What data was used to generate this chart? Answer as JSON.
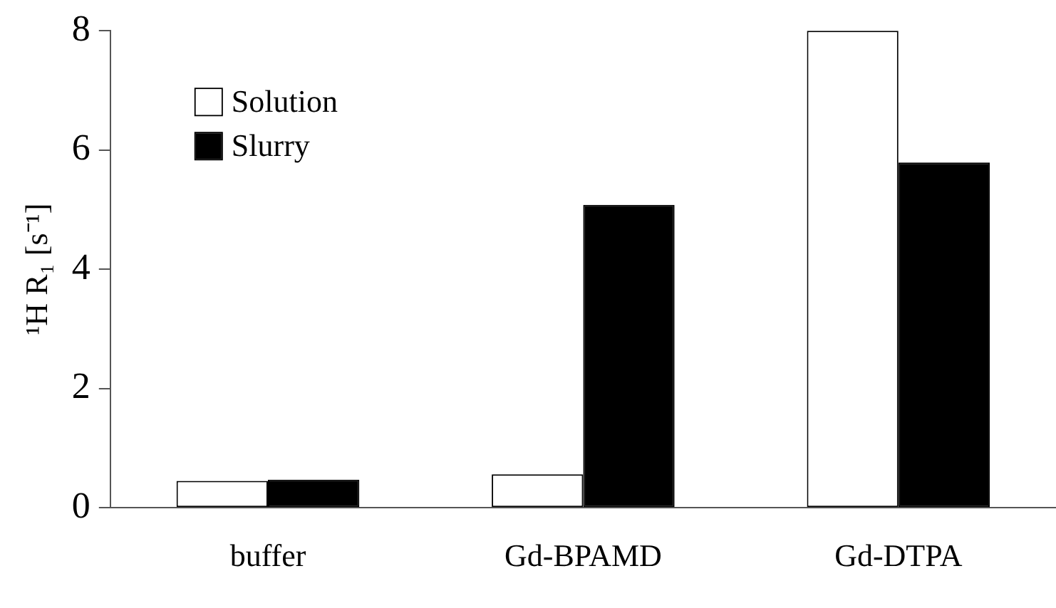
{
  "chart_data": {
    "type": "bar",
    "ylabel": "¹H R₁ [s⁻¹]",
    "categories": [
      "buffer",
      "Gd-BPAMD",
      "Gd-DTPA"
    ],
    "series": [
      {
        "name": "Solution",
        "color": "#ffffff",
        "values": [
          0.45,
          0.56,
          8.0
        ]
      },
      {
        "name": "Slurry",
        "color": "#000000",
        "values": [
          0.47,
          5.08,
          5.79
        ]
      }
    ],
    "ylim": [
      0,
      8
    ],
    "yticks": [
      0,
      2,
      4,
      6,
      8
    ],
    "grid": false,
    "legend": "top left"
  }
}
